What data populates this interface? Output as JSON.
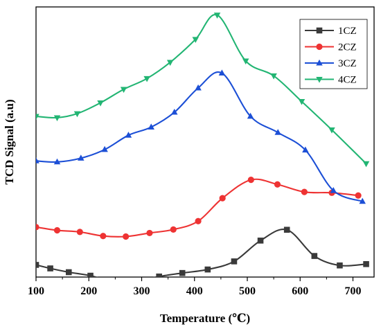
{
  "chart_data": {
    "type": "line",
    "title": "",
    "xlabel": "Temperature (℃)",
    "ylabel": "TCD Signal (a.u)",
    "xlim": [
      100,
      740
    ],
    "ylim": [
      0,
      100
    ],
    "xticks": [
      100,
      200,
      300,
      400,
      500,
      600,
      700
    ],
    "y_tick_labels_shown": false,
    "grid": false,
    "legend_position": "top-right",
    "series": [
      {
        "name": "1CZ",
        "color": "#3a3a3a",
        "marker": "square",
        "x": [
          100,
          127,
          162,
          203,
          245,
          290,
          333,
          377,
          425,
          475,
          525,
          575,
          627,
          675,
          725
        ],
        "y": [
          4.5,
          3.2,
          1.8,
          0.5,
          -1.6,
          -1.5,
          0.2,
          1.5,
          2.8,
          5.8,
          13.5,
          17.5,
          7.8,
          4.3,
          4.8
        ]
      },
      {
        "name": "2CZ",
        "color": "#ee3333",
        "marker": "circle",
        "x": [
          100,
          140,
          183,
          227,
          270,
          315,
          360,
          407,
          453,
          507,
          557,
          608,
          660,
          710
        ],
        "y": [
          18.5,
          17.3,
          16.7,
          15.2,
          15.0,
          16.3,
          17.6,
          20.7,
          29.2,
          36.0,
          34.3,
          31.5,
          31.2,
          30.2
        ]
      },
      {
        "name": "3CZ",
        "color": "#1c4fd6",
        "marker": "triangle-up",
        "x": [
          100,
          140,
          185,
          230,
          275,
          318,
          362,
          407,
          452,
          506,
          558,
          610,
          663,
          718
        ],
        "y": [
          43.0,
          42.6,
          44.0,
          47.2,
          52.5,
          55.5,
          61.0,
          70.0,
          75.5,
          59.5,
          53.5,
          47.0,
          32.0,
          28.0
        ]
      },
      {
        "name": "4CZ",
        "color": "#22b573",
        "marker": "triangle-down",
        "x": [
          100,
          140,
          178,
          222,
          266,
          310,
          354,
          402,
          443,
          497,
          550,
          603,
          660,
          725
        ],
        "y": [
          59.5,
          59.0,
          60.5,
          64.5,
          69.5,
          73.5,
          79.5,
          88.0,
          97.0,
          80.0,
          74.5,
          65.0,
          54.5,
          42.0
        ]
      }
    ]
  }
}
